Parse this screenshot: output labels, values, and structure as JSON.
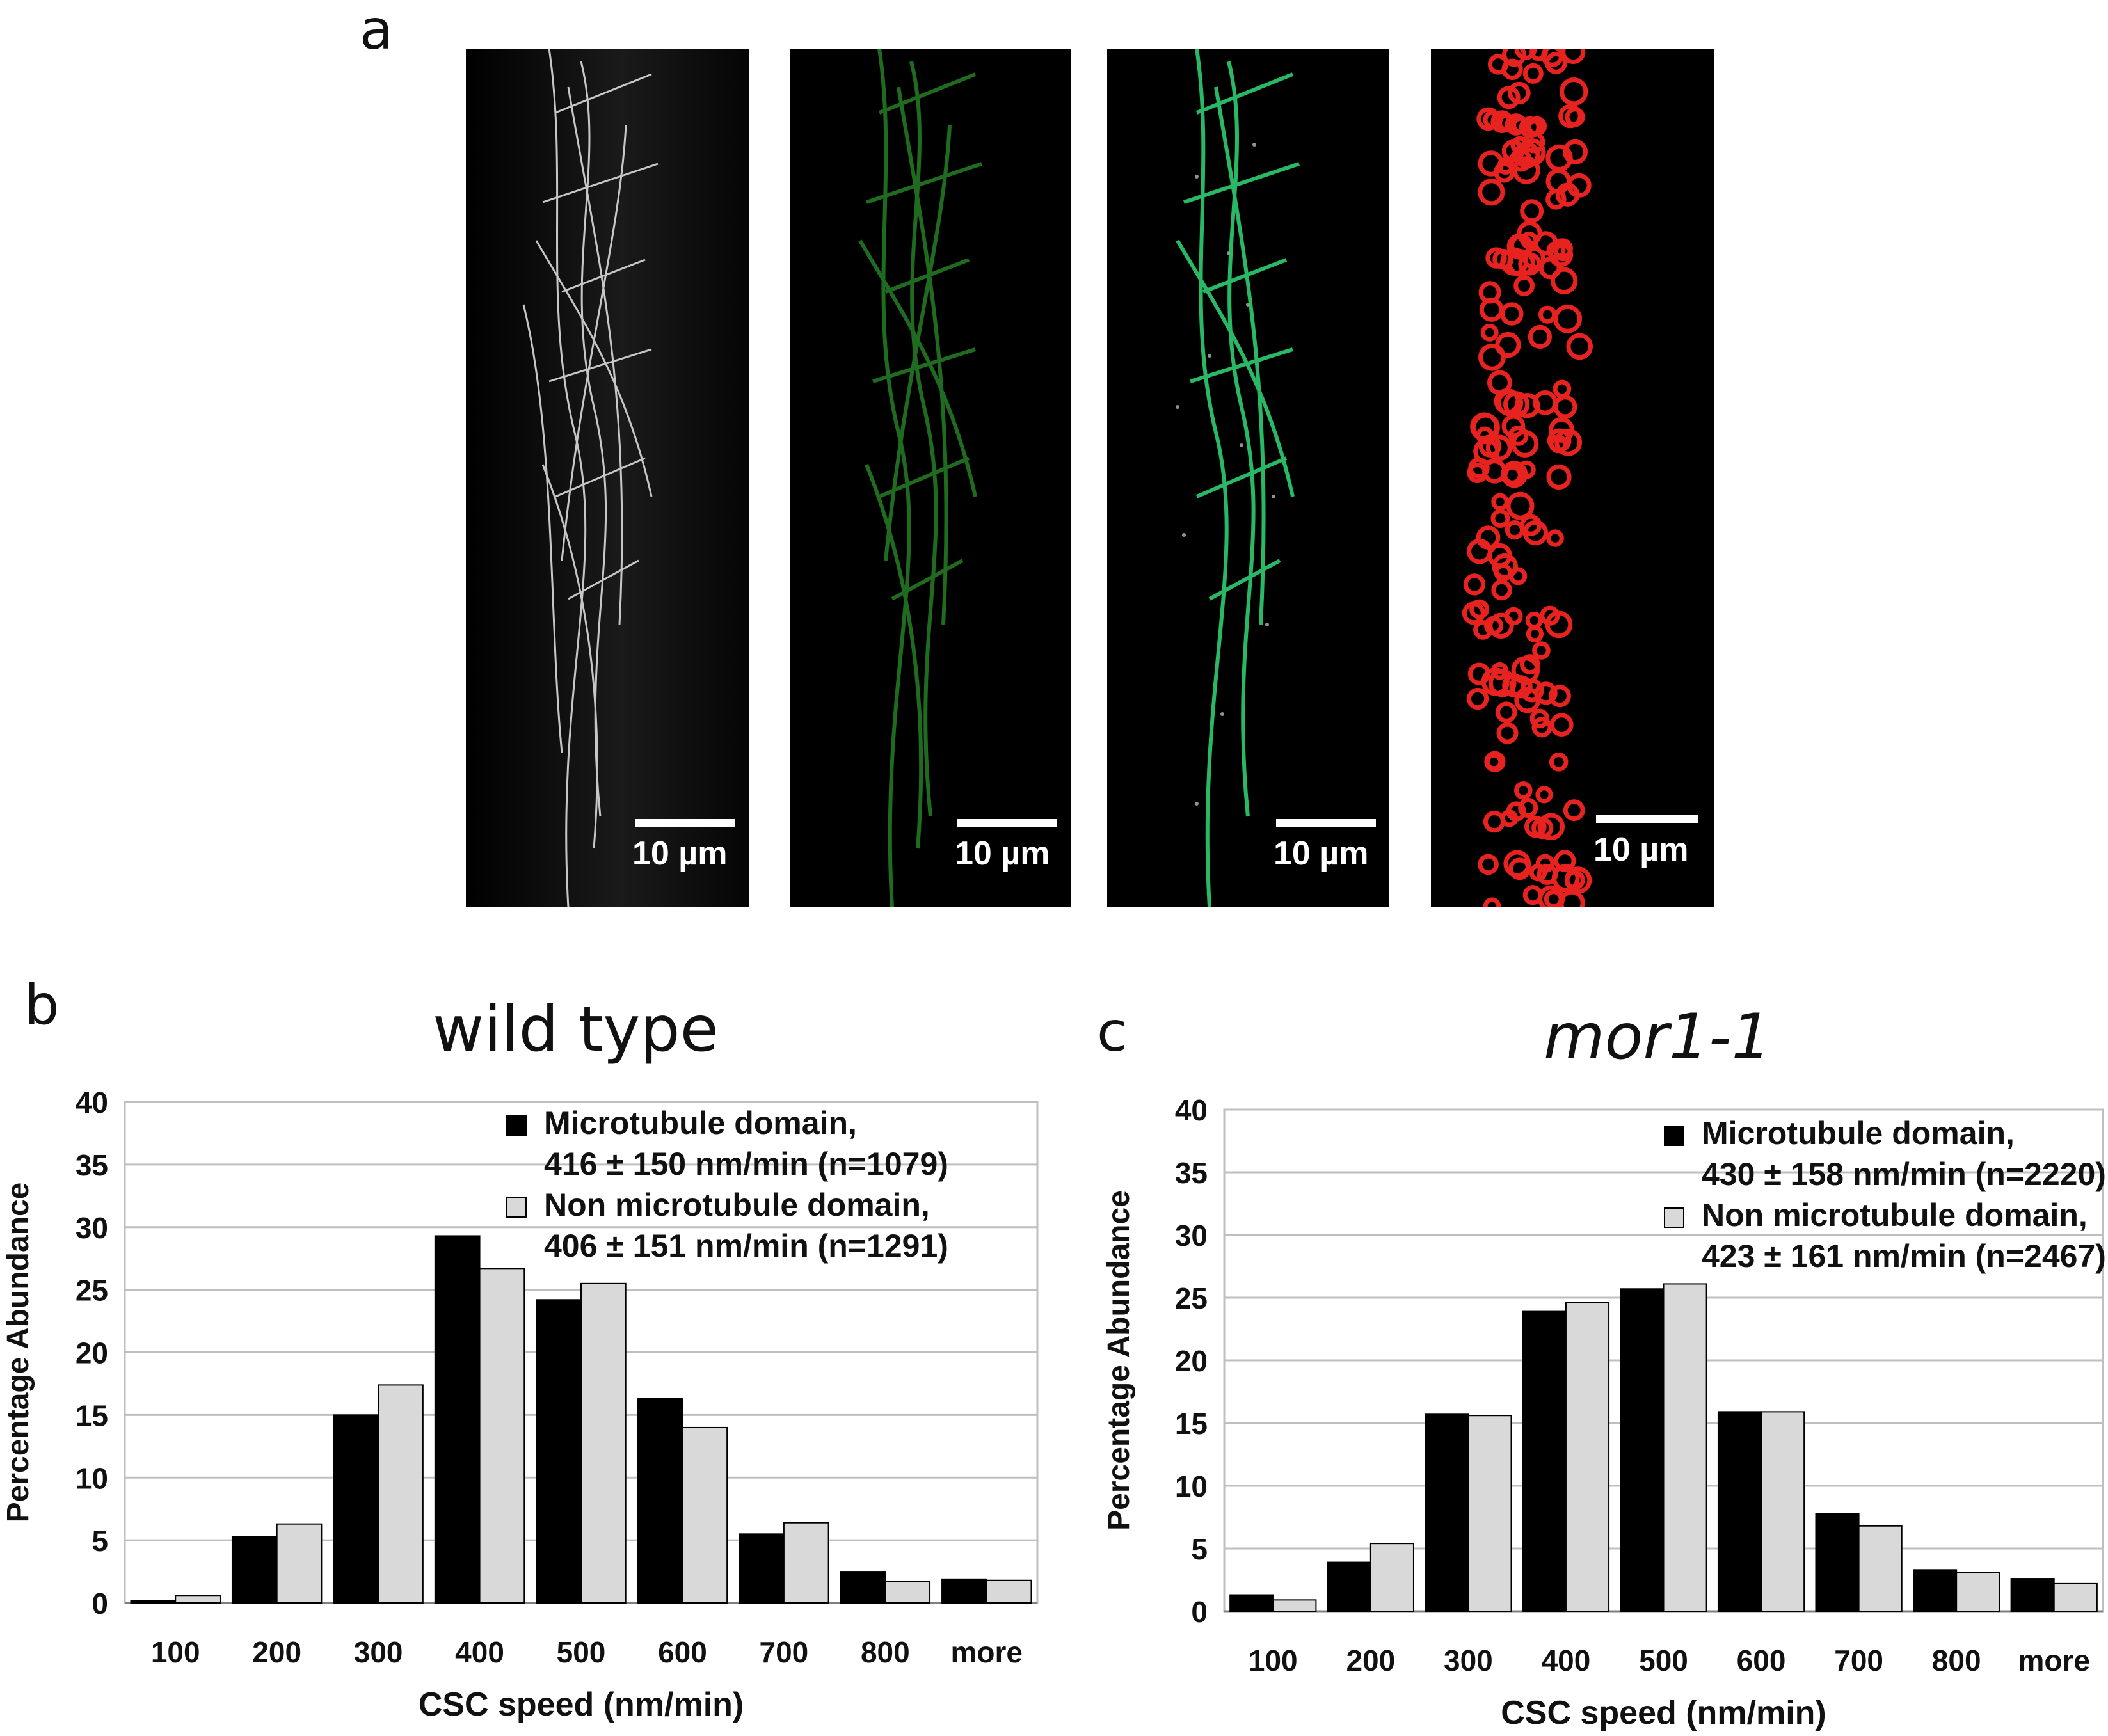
{
  "panel_labels": {
    "a": "a",
    "b": "b",
    "c": "c"
  },
  "micrographs": [
    {
      "name": "microtubules-gray",
      "scale_label": "10 µm"
    },
    {
      "name": "microtubules-segmented-green",
      "scale_label": "10 µm"
    },
    {
      "name": "overlay-green-white",
      "scale_label": "10 µm"
    },
    {
      "name": "csc-particles-red",
      "scale_label": "10 µm"
    }
  ],
  "colors": {
    "series_mt": "#000000",
    "series_non_mt": "#d9d9d9",
    "gridline": "#bfbfbf",
    "green": "#1f6b1f",
    "red": "#e8231f"
  },
  "chart_data": [
    {
      "type": "bar",
      "title": "wild type",
      "title_style": "normal",
      "xlabel": "CSC speed  (nm/min)",
      "ylabel": "Percentage Abundance",
      "ylim": [
        0,
        40
      ],
      "yticks": [
        "0",
        "5",
        "10",
        "15",
        "20",
        "25",
        "30",
        "35",
        "40"
      ],
      "grid": true,
      "legend_position": "top-right",
      "categories": [
        "100",
        "200",
        "300",
        "400",
        "500",
        "600",
        "700",
        "800",
        "more"
      ],
      "series": [
        {
          "name": "Microtubule domain,",
          "stats": "416 ± 150 nm/min  (n=1079)",
          "color": "#000000",
          "values": [
            0.2,
            5.3,
            15.0,
            29.3,
            24.2,
            16.3,
            5.5,
            2.5,
            1.9
          ]
        },
        {
          "name": "Non microtubule domain,",
          "stats": "406 ± 151 nm/min (n=1291)",
          "color": "#d9d9d9",
          "values": [
            0.6,
            6.3,
            17.4,
            26.7,
            25.5,
            14.0,
            6.4,
            1.7,
            1.8
          ]
        }
      ]
    },
    {
      "type": "bar",
      "title": "mor1-1",
      "title_style": "italic",
      "xlabel": "CSC speed  (nm/min)",
      "ylabel": "Percentage Abundance",
      "ylim": [
        0,
        40
      ],
      "yticks": [
        "0",
        "5",
        "10",
        "15",
        "20",
        "25",
        "30",
        "35",
        "40"
      ],
      "grid": true,
      "legend_position": "top-right",
      "categories": [
        "100",
        "200",
        "300",
        "400",
        "500",
        "600",
        "700",
        "800",
        "more"
      ],
      "series": [
        {
          "name": "Microtubule domain,",
          "stats": "430 ± 158 nm/min  (n=2220)",
          "color": "#000000",
          "values": [
            1.3,
            3.9,
            15.7,
            23.9,
            25.7,
            15.9,
            7.8,
            3.3,
            2.6
          ]
        },
        {
          "name": "Non microtubule domain,",
          "stats": "423 ± 161 nm/min (n=2467)",
          "color": "#d9d9d9",
          "values": [
            0.9,
            5.4,
            15.6,
            24.6,
            26.1,
            15.9,
            6.8,
            3.1,
            2.2
          ]
        }
      ]
    }
  ]
}
